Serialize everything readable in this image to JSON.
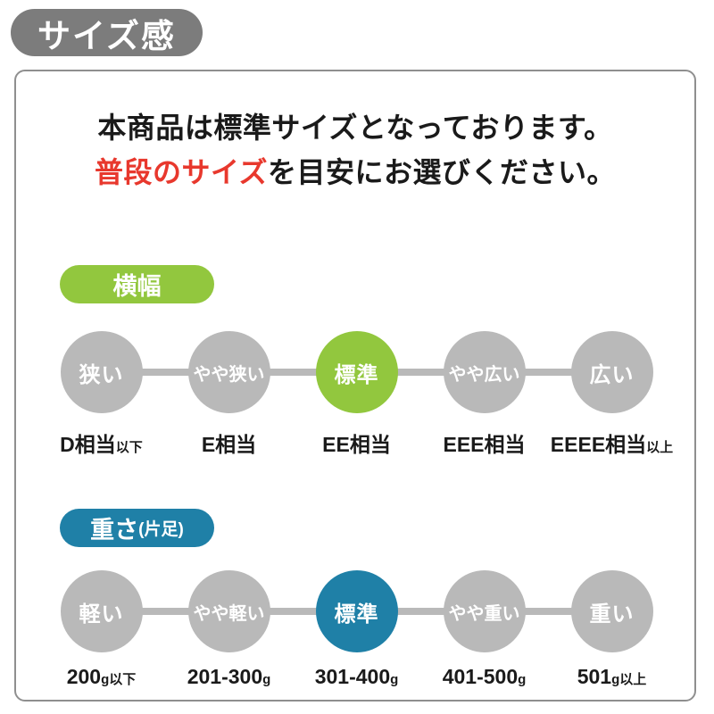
{
  "badge": {
    "label": "サイズ感"
  },
  "intro": {
    "line1": "本商品は標準サイズとなっております。",
    "line2_highlight": "普段のサイズ",
    "line2_rest": "を目安にお選びください。"
  },
  "colors": {
    "red": "#e8382d",
    "badge_gray": "#7c7c7c",
    "inactive_gray": "#b9b9b9",
    "width_green": "#92c73e",
    "weight_blue": "#1f80a7"
  },
  "sections": [
    {
      "pill": "横幅",
      "pill_suffix": "",
      "color": "#92c73e",
      "steps": [
        {
          "label": "狭い",
          "sub_main": "D相当",
          "sub_small": "以下",
          "active": false
        },
        {
          "label": "やや狭い",
          "sub_main": "E相当",
          "sub_small": "",
          "active": false
        },
        {
          "label": "標準",
          "sub_main": "EE相当",
          "sub_small": "",
          "active": true
        },
        {
          "label": "やや広い",
          "sub_main": "EEE相当",
          "sub_small": "",
          "active": false
        },
        {
          "label": "広い",
          "sub_main": "EEEE相当",
          "sub_small": "以上",
          "active": false
        }
      ]
    },
    {
      "pill": "重さ",
      "pill_suffix": "(片足)",
      "color": "#1f80a7",
      "steps": [
        {
          "label": "軽い",
          "sub_main": "200",
          "sub_small": "g以下",
          "active": false
        },
        {
          "label": "やや軽い",
          "sub_main": "201-300",
          "sub_small": "g",
          "active": false
        },
        {
          "label": "標準",
          "sub_main": "301-400",
          "sub_small": "g",
          "active": true
        },
        {
          "label": "やや重い",
          "sub_main": "401-500",
          "sub_small": "g",
          "active": false
        },
        {
          "label": "重い",
          "sub_main": "501",
          "sub_small": "g以上",
          "active": false
        }
      ]
    }
  ]
}
